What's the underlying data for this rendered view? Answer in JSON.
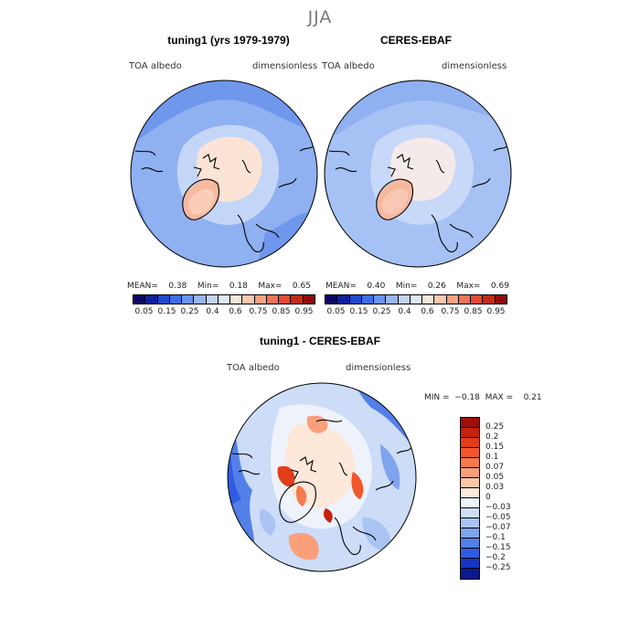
{
  "season": "JJA",
  "panels": {
    "model": {
      "title": "tuning1 (yrs 1979-1979)",
      "variable": "TOA albedo",
      "units": "dimensionless",
      "stats": {
        "mean_label": "MEAN=",
        "mean": "0.38",
        "min_label": "Min=",
        "min": "0.18",
        "max_label": "Max=",
        "max": "0.65"
      }
    },
    "obs": {
      "title": "CERES-EBAF",
      "variable": "TOA albedo",
      "units": "dimensionless",
      "stats": {
        "mean_label": "MEAN=",
        "mean": "0.40",
        "min_label": "Min=",
        "min": "0.26",
        "max_label": "Max=",
        "max": "0.69"
      }
    },
    "diff": {
      "title": "tuning1 - CERES-EBAF",
      "variable": "TOA albedo",
      "units": "dimensionless",
      "stats": {
        "min_label": "MIN =",
        "min": "−0.18",
        "max_label": "MAX =",
        "max": "0.21"
      }
    }
  },
  "colorbar_main": {
    "tick_labels": [
      "0.05",
      "0.15",
      "0.25",
      "0.4",
      "0.6",
      "0.75",
      "0.85",
      "0.95"
    ],
    "colors": [
      "#08085e",
      "#0e1f9a",
      "#1f4ad0",
      "#3f6fe6",
      "#6b93ee",
      "#98b6f3",
      "#c0d2f7",
      "#dde8fb",
      "#fbe6da",
      "#fbc7b0",
      "#f7a184",
      "#ef7458",
      "#e24a31",
      "#c32816",
      "#8c0d08"
    ]
  },
  "colorbar_diff": {
    "tick_labels": [
      "0.25",
      "0.2",
      "0.15",
      "0.1",
      "0.07",
      "0.05",
      "0.03",
      "0",
      "−0.03",
      "−0.05",
      "−0.07",
      "−0.1",
      "−0.15",
      "−0.2",
      "−0.25"
    ],
    "colors": [
      "#9e0e0a",
      "#c52110",
      "#e23c18",
      "#f2562a",
      "#f77a4c",
      "#f9a07a",
      "#fcc6a9",
      "#fde8da",
      "#eef2fb",
      "#cddcf7",
      "#a9c3f3",
      "#7fa3ee",
      "#5380e8",
      "#2f5ce0",
      "#1535c4",
      "#0a1a8e"
    ]
  }
}
